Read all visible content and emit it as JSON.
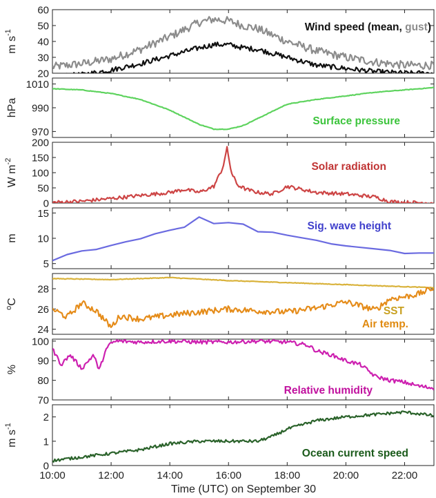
{
  "figure": {
    "xlabel": "Time (UTC) on September 30"
  },
  "chart_data": [
    {
      "type": "line",
      "panel": "wind",
      "ylabel": "m s-1",
      "ylabel_parts": {
        "base": "m s",
        "sup": "-1"
      },
      "ylim": [
        20,
        60
      ],
      "yticks": [
        20,
        30,
        40,
        50,
        60
      ],
      "title_parts": [
        {
          "text": "Wind speed (mean, ",
          "color": "#111111"
        },
        {
          "text": "gust",
          "color": "#8c8c8c"
        },
        {
          "text": ")",
          "color": "#111111"
        }
      ],
      "series": [
        {
          "name": "gust",
          "color": "#8c8c8c",
          "noise": 2.6,
          "x": [
            10,
            11,
            12,
            13,
            14,
            15,
            15.5,
            16,
            16.5,
            17,
            18,
            19,
            20,
            21,
            22,
            23
          ],
          "y": [
            24,
            26,
            29,
            35,
            43,
            52,
            54,
            53,
            50,
            48,
            40,
            34,
            30,
            27,
            25,
            25
          ]
        },
        {
          "name": "mean",
          "color": "#111111",
          "noise": 1.6,
          "x": [
            10,
            11,
            12,
            13,
            14,
            15,
            15.5,
            16,
            16.5,
            17,
            18,
            19,
            20,
            21,
            22,
            23
          ],
          "y": [
            18,
            19,
            22,
            26,
            31,
            36,
            38,
            38,
            36,
            35,
            30,
            25,
            23,
            21,
            20,
            20
          ]
        }
      ]
    },
    {
      "type": "line",
      "panel": "pressure",
      "ylabel": "hPa",
      "ylim": [
        965,
        1015
      ],
      "yticks": [
        970,
        990,
        1010
      ],
      "title_parts": [
        {
          "text": "Surface pressure",
          "color": "#3cc43c"
        }
      ],
      "series": [
        {
          "name": "Surface pressure",
          "color": "#5ed35e",
          "noise": 0.25,
          "x": [
            10,
            11,
            12,
            13,
            14,
            15,
            15.5,
            16,
            16.5,
            17,
            18,
            19,
            20,
            21,
            22,
            23
          ],
          "y": [
            1006,
            1005,
            1002,
            997,
            988,
            976,
            972,
            972,
            975,
            981,
            993,
            997,
            1000,
            1003,
            1005,
            1007
          ]
        }
      ]
    },
    {
      "type": "line",
      "panel": "solar",
      "ylabel": "W m-2",
      "ylabel_parts": {
        "base": "W m",
        "sup": "-2"
      },
      "ylim": [
        0,
        200
      ],
      "yticks": [
        0,
        50,
        100,
        150,
        200
      ],
      "title_parts": [
        {
          "text": "Solar radiation",
          "color": "#c03434"
        }
      ],
      "series": [
        {
          "name": "Solar radiation",
          "color": "#cd4545",
          "noise": 6,
          "x": [
            10,
            11,
            12,
            13,
            14,
            14.5,
            15,
            15.5,
            15.8,
            15.95,
            16.1,
            16.3,
            16.6,
            17,
            17.5,
            18,
            19,
            20,
            21,
            21.5,
            22,
            23
          ],
          "y": [
            2,
            6,
            15,
            25,
            35,
            45,
            35,
            55,
            115,
            180,
            100,
            60,
            45,
            35,
            30,
            55,
            35,
            30,
            20,
            5,
            2,
            1
          ]
        }
      ]
    },
    {
      "type": "line",
      "panel": "wave",
      "ylabel": "m",
      "ylim": [
        4,
        16
      ],
      "yticks": [
        5,
        10,
        15
      ],
      "title_parts": [
        {
          "text": "Sig. wave height",
          "color": "#4040cc"
        }
      ],
      "series": [
        {
          "name": "Sig. wave height",
          "color": "#6a6ae0",
          "noise": 0,
          "x": [
            10,
            10.5,
            11,
            11.5,
            12,
            12.5,
            13,
            13.5,
            14,
            14.5,
            15,
            15.5,
            16,
            16.5,
            17,
            17.5,
            18,
            18.5,
            19,
            19.5,
            20,
            20.5,
            21,
            21.5,
            22,
            22.5,
            23
          ],
          "y": [
            5.6,
            6.8,
            7.5,
            7.8,
            8.6,
            9.3,
            9.9,
            10.9,
            11.6,
            12.2,
            14.2,
            12.9,
            13.1,
            12.8,
            11.3,
            11.2,
            10.6,
            10.1,
            9.6,
            8.9,
            8.5,
            8.2,
            7.9,
            7.6,
            7.0,
            7.1,
            7.1
          ]
        }
      ]
    },
    {
      "type": "line",
      "panel": "temperature",
      "ylabel": "oC",
      "ylabel_parts": {
        "sup": "o",
        "base": "C"
      },
      "ylim": [
        23.5,
        29.5
      ],
      "yticks": [
        24,
        26,
        28
      ],
      "title_parts": [
        {
          "text": "SST",
          "color": "#c8a020"
        },
        {
          "text": "Air temp.",
          "color": "#e08a10"
        }
      ],
      "series": [
        {
          "name": "SST",
          "color": "#d9b23a",
          "noise": 0.03,
          "x": [
            10,
            12,
            14,
            16,
            18,
            20,
            22,
            23
          ],
          "y": [
            29.0,
            28.9,
            29.1,
            28.8,
            28.6,
            28.4,
            28.2,
            28.1
          ]
        },
        {
          "name": "Air temp.",
          "color": "#e58c1a",
          "noise": 0.3,
          "x": [
            10,
            10.5,
            11,
            11.5,
            12,
            12.3,
            13,
            14,
            15,
            16,
            17,
            18,
            19,
            20,
            20.5,
            21,
            21.5,
            22,
            22.5,
            23
          ],
          "y": [
            26,
            25.2,
            26.6,
            25.8,
            24.2,
            25.3,
            25.0,
            25.4,
            25.7,
            26.0,
            25.8,
            25.7,
            26.1,
            26.7,
            26.3,
            25.9,
            27.0,
            27.2,
            27.5,
            28.1
          ]
        }
      ]
    },
    {
      "type": "line",
      "panel": "humidity",
      "ylabel": "%",
      "ylim": [
        70,
        101
      ],
      "yticks": [
        70,
        80,
        90,
        100
      ],
      "title_parts": [
        {
          "text": "Relative humidity",
          "color": "#c0109e"
        }
      ],
      "series": [
        {
          "name": "Relative humidity",
          "color": "#cd20b0",
          "noise": 1.0,
          "x": [
            10,
            10.3,
            10.6,
            11,
            11.4,
            11.6,
            11.8,
            12,
            12.2,
            13,
            14,
            15,
            16,
            17,
            18,
            18.7,
            19,
            19.5,
            20,
            20.5,
            21,
            21.5,
            22,
            22.5,
            23
          ],
          "y": [
            96,
            88,
            93,
            86,
            93,
            85,
            95,
            99,
            100,
            99.5,
            100,
            99.5,
            99.5,
            100,
            99.5,
            98,
            95,
            93,
            90,
            88,
            82,
            80,
            79,
            77,
            76
          ]
        }
      ]
    },
    {
      "type": "line",
      "panel": "current",
      "ylabel": "m s-1",
      "ylabel_parts": {
        "base": "m s",
        "sup": "-1"
      },
      "ylim": [
        0,
        2.5
      ],
      "yticks": [
        0,
        1,
        2
      ],
      "title_parts": [
        {
          "text": "Ocean current speed",
          "color": "#1a5a1a"
        }
      ],
      "series": [
        {
          "name": "Ocean current speed",
          "color": "#2a622a",
          "noise": 0.06,
          "x": [
            10,
            11,
            12,
            13,
            14,
            15,
            16,
            17,
            17.5,
            18,
            19,
            20,
            21,
            22,
            23
          ],
          "y": [
            0.2,
            0.35,
            0.5,
            0.65,
            0.9,
            1.0,
            1.0,
            1.0,
            1.2,
            1.5,
            1.85,
            2.0,
            2.1,
            2.2,
            2.05
          ]
        }
      ]
    }
  ],
  "xaxis": {
    "xlim": [
      10,
      23
    ],
    "ticks": [
      10,
      12,
      14,
      16,
      18,
      20,
      22
    ],
    "tick_labels": [
      "10:00",
      "12:00",
      "14:00",
      "16:00",
      "18:00",
      "20:00",
      "22:00"
    ]
  }
}
